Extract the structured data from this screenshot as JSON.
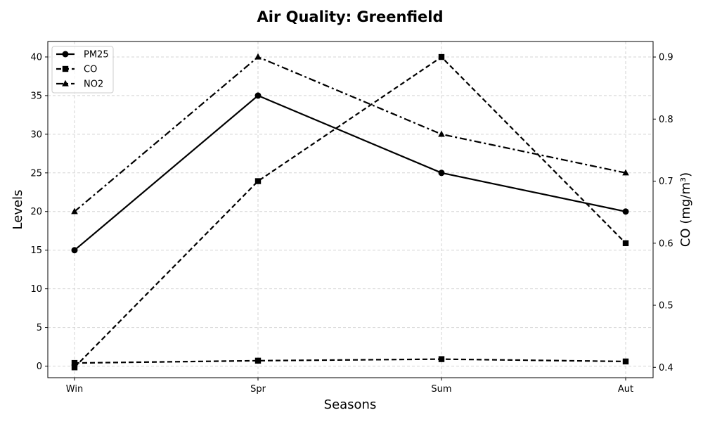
{
  "chart_data": {
    "type": "line",
    "title": "Air Quality: Greenfield",
    "xlabel": "Seasons",
    "ylabel": "Levels",
    "y2label": "CO (mg/m³)",
    "categories": [
      "Win",
      "Spr",
      "Sum",
      "Aut"
    ],
    "ylim": [
      -1.5,
      42
    ],
    "y2lim": [
      0.3833,
      0.925
    ],
    "yticks": [
      0,
      5,
      10,
      15,
      20,
      25,
      30,
      35,
      40
    ],
    "y2ticks": [
      "0.4",
      "0.5",
      "0.6",
      "0.7",
      "0.8",
      "0.9"
    ],
    "grid": true,
    "legend_position": "upper left",
    "series": [
      {
        "name": "PM25",
        "axis": "left",
        "values": [
          15,
          35,
          25,
          20
        ],
        "marker": "circle",
        "dash": "solid"
      },
      {
        "name": "CO",
        "axis": "left",
        "values": [
          0.4,
          0.7,
          0.9,
          0.6
        ],
        "marker": "square",
        "dash": "dashed"
      },
      {
        "name": "NO2",
        "axis": "left",
        "values": [
          20,
          40,
          30,
          25
        ],
        "marker": "triangle",
        "dash": "dashdot"
      },
      {
        "name": "",
        "axis": "right",
        "values": [
          0.4,
          0.7,
          0.9,
          0.6
        ],
        "marker": "square",
        "dash": "dashed"
      }
    ]
  }
}
